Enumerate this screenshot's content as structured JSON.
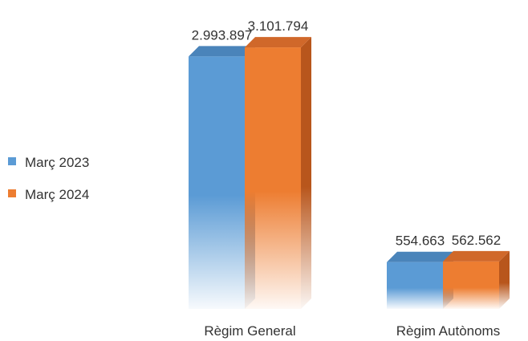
{
  "chart_data": {
    "type": "bar",
    "categories": [
      "Règim General",
      "Règim Autònoms"
    ],
    "series": [
      {
        "name": "Març 2023",
        "values": [
          2993897,
          554663
        ],
        "labels": [
          "2.993.897",
          "554.663"
        ]
      },
      {
        "name": "Març 2024",
        "values": [
          3101794,
          562562
        ],
        "labels": [
          "3.101.794",
          "562.562"
        ]
      }
    ],
    "title": "",
    "xlabel": "",
    "ylabel": "",
    "ylim": [
      0,
      3350000
    ],
    "grid": false,
    "legend_position": "left",
    "style": "3d-bars-gradient",
    "colors": [
      "#5b9bd5",
      "#ed7d31"
    ],
    "side_colors": [
      "#3f75a8",
      "#b8561c"
    ],
    "top_colors": [
      "#4a84ba",
      "#d0682a"
    ]
  }
}
